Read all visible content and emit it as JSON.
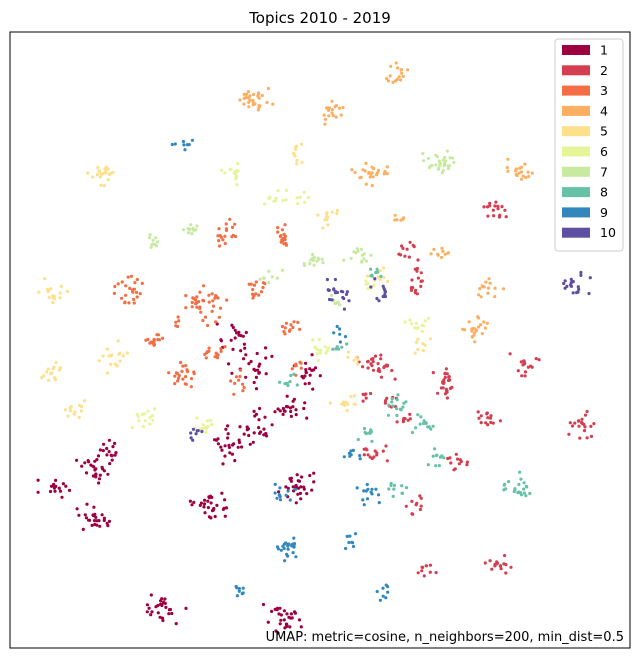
{
  "chart_data": {
    "type": "scatter",
    "title": "Topics 2010 - 2019",
    "xlabel": "",
    "ylabel": "",
    "xlim": [
      0,
      100
    ],
    "ylim": [
      0,
      100
    ],
    "grid": false,
    "axes_ticks": false,
    "legend": {
      "placement": "top-right"
    },
    "annotation": "UMAP: metric=cosine, n_neighbors=200, min_dist=0.5",
    "series": [
      {
        "name": "1",
        "color": "#9e0142",
        "clusters": [
          [
            14,
            21,
            2.8,
            1.8,
            26
          ],
          [
            25,
            6,
            2.6,
            2.0,
            28
          ],
          [
            14,
            29,
            2.6,
            1.8,
            26
          ],
          [
            7,
            26,
            2.0,
            1.5,
            16
          ],
          [
            16,
            32,
            1.7,
            1.6,
            14
          ],
          [
            33,
            23,
            3.0,
            2.2,
            30
          ],
          [
            46,
            26,
            2.3,
            2.3,
            30
          ],
          [
            44,
            5,
            2.4,
            2.0,
            30
          ],
          [
            35,
            33,
            2.4,
            2.4,
            24
          ],
          [
            40,
            36,
            2.5,
            2.8,
            24
          ],
          [
            45,
            39,
            2.2,
            1.8,
            20
          ],
          [
            39,
            46,
            3.0,
            3.0,
            24
          ],
          [
            36,
            50,
            2.2,
            2.0,
            18
          ],
          [
            48,
            45,
            2.0,
            2.5,
            18
          ]
        ]
      },
      {
        "name": "2",
        "color": "#d53e4f",
        "clusters": [
          [
            59,
            46,
            2.4,
            1.8,
            28
          ],
          [
            70,
            43,
            2.0,
            2.0,
            26
          ],
          [
            83,
            46,
            1.8,
            1.4,
            16
          ],
          [
            77,
            37,
            1.8,
            1.2,
            14
          ],
          [
            92,
            36,
            1.8,
            2.0,
            20
          ],
          [
            78,
            71,
            1.9,
            1.5,
            16
          ],
          [
            66,
            60,
            1.8,
            2.4,
            16
          ],
          [
            64,
            65,
            1.8,
            1.8,
            10
          ],
          [
            72,
            30,
            2.0,
            1.2,
            12
          ],
          [
            66,
            23,
            1.6,
            1.5,
            10
          ],
          [
            58,
            32,
            2.2,
            1.4,
            14
          ],
          [
            79,
            14,
            1.8,
            1.4,
            16
          ],
          [
            67,
            13,
            1.5,
            1.4,
            10
          ],
          [
            61,
            40,
            1.2,
            1.2,
            8
          ],
          [
            64,
            37,
            1.2,
            1.2,
            8
          ],
          [
            57,
            41,
            1.0,
            1.0,
            6
          ]
        ]
      },
      {
        "name": "3",
        "color": "#f46d43",
        "clusters": [
          [
            19,
            58,
            2.2,
            1.8,
            24
          ],
          [
            32,
            56,
            2.8,
            2.8,
            32
          ],
          [
            23,
            50,
            1.6,
            1.3,
            16
          ],
          [
            28,
            44,
            2.0,
            2.0,
            22
          ],
          [
            35,
            67,
            1.8,
            2.0,
            18
          ],
          [
            44,
            67,
            1.8,
            1.4,
            16
          ],
          [
            33,
            48,
            1.8,
            1.5,
            14
          ],
          [
            45,
            52,
            1.6,
            1.5,
            12
          ],
          [
            40,
            58,
            2.2,
            1.8,
            14
          ],
          [
            37,
            43,
            1.8,
            1.6,
            10
          ],
          [
            46,
            46,
            1.5,
            1.4,
            8
          ],
          [
            27,
            53,
            1.0,
            1.0,
            5
          ],
          [
            30,
            56,
            1.0,
            1.0,
            4
          ]
        ]
      },
      {
        "name": "4",
        "color": "#fdae61",
        "clusters": [
          [
            39,
            89,
            2.6,
            2.0,
            30
          ],
          [
            52,
            87,
            2.0,
            1.5,
            18
          ],
          [
            62,
            93,
            1.8,
            1.6,
            16
          ],
          [
            58,
            77,
            2.2,
            2.0,
            24
          ],
          [
            82,
            77,
            2.0,
            1.8,
            18
          ],
          [
            75,
            52,
            2.2,
            1.8,
            22
          ],
          [
            77,
            58,
            2.0,
            1.5,
            14
          ],
          [
            70,
            64,
            1.6,
            1.2,
            10
          ],
          [
            63,
            70,
            1.2,
            1.2,
            6
          ]
        ]
      },
      {
        "name": "5",
        "color": "#fee08b",
        "clusters": [
          [
            15,
            77,
            2.2,
            1.5,
            20
          ],
          [
            7,
            58,
            2.0,
            1.5,
            16
          ],
          [
            17,
            47,
            2.0,
            2.2,
            16
          ],
          [
            7,
            45,
            1.8,
            1.5,
            14
          ],
          [
            11,
            39,
            1.8,
            1.2,
            12
          ],
          [
            51,
            70,
            1.6,
            1.4,
            12
          ],
          [
            54,
            40,
            1.8,
            1.4,
            12
          ],
          [
            46,
            80,
            1.2,
            1.8,
            10
          ],
          [
            60,
            60,
            1.8,
            1.4,
            10
          ],
          [
            67,
            49,
            1.5,
            1.5,
            8
          ],
          [
            56,
            47,
            1.2,
            1.2,
            6
          ]
        ]
      },
      {
        "name": "6",
        "color": "#e6f598",
        "clusters": [
          [
            36,
            77,
            1.6,
            1.5,
            14
          ],
          [
            43,
            73,
            1.5,
            1.2,
            10
          ],
          [
            22,
            37,
            1.8,
            1.4,
            14
          ],
          [
            31,
            36,
            1.7,
            1.4,
            12
          ],
          [
            50,
            49,
            1.5,
            1.8,
            14
          ],
          [
            66,
            52,
            1.8,
            1.4,
            12
          ],
          [
            47,
            73,
            1.0,
            1.0,
            6
          ],
          [
            58,
            59,
            1.2,
            1.2,
            6
          ]
        ]
      },
      {
        "name": "7",
        "color": "#c7e9a0",
        "clusters": [
          [
            69,
            79,
            2.4,
            1.8,
            32
          ],
          [
            29,
            68,
            1.4,
            1.2,
            12
          ],
          [
            23,
            66,
            1.4,
            1.2,
            10
          ],
          [
            49,
            63,
            1.6,
            1.4,
            14
          ],
          [
            56,
            63,
            1.8,
            1.4,
            14
          ],
          [
            42,
            60,
            1.5,
            1.5,
            8
          ],
          [
            52,
            56,
            1.2,
            1.2,
            6
          ]
        ]
      },
      {
        "name": "8",
        "color": "#66c2a5",
        "clusters": [
          [
            62,
            39,
            1.7,
            1.6,
            14
          ],
          [
            67,
            36,
            1.6,
            1.6,
            14
          ],
          [
            58,
            35,
            1.5,
            1.5,
            10
          ],
          [
            82,
            26,
            2.0,
            2.0,
            22
          ],
          [
            69,
            31,
            1.4,
            1.5,
            10
          ],
          [
            62,
            26,
            1.5,
            1.2,
            10
          ],
          [
            59,
            61,
            1.2,
            1.2,
            8
          ],
          [
            45,
            43,
            1.4,
            1.2,
            8
          ],
          [
            53,
            49,
            1.2,
            1.2,
            6
          ]
        ]
      },
      {
        "name": "9",
        "color": "#3288bd",
        "clusters": [
          [
            45,
            16,
            2.0,
            1.8,
            22
          ],
          [
            37,
            9,
            1.2,
            1.2,
            8
          ],
          [
            44,
            25,
            1.8,
            1.2,
            12
          ],
          [
            55,
            32,
            1.4,
            1.2,
            8
          ],
          [
            58,
            25,
            1.8,
            1.6,
            14
          ],
          [
            60,
            9,
            1.2,
            1.2,
            8
          ],
          [
            55,
            17,
            1.2,
            1.2,
            8
          ],
          [
            28,
            82,
            1.4,
            1.2,
            8
          ],
          [
            53,
            51,
            1.2,
            1.5,
            6
          ]
        ]
      },
      {
        "name": "10",
        "color": "#5e4fa2",
        "clusters": [
          [
            91,
            59,
            2.0,
            1.5,
            20
          ],
          [
            53,
            58,
            2.0,
            1.4,
            16
          ],
          [
            60,
            58,
            1.4,
            1.5,
            12
          ],
          [
            30,
            35,
            1.2,
            1.0,
            8
          ],
          [
            54,
            56,
            1.0,
            1.0,
            4
          ]
        ]
      }
    ]
  }
}
